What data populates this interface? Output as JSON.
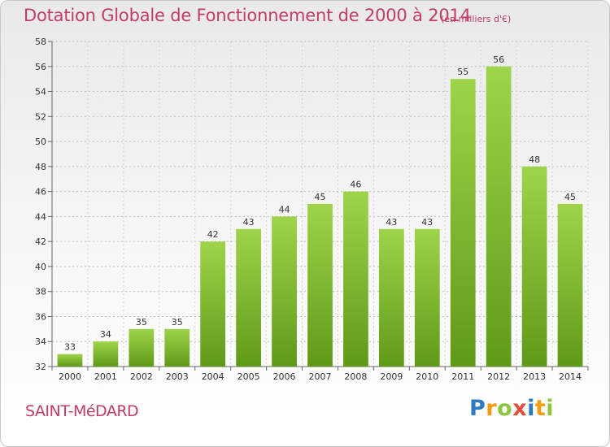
{
  "title": "Dotation Globale de Fonctionnement de 2000 à 2014",
  "subtitle": "(en milliers d'€)",
  "commune": "SAINT-MéDARD",
  "logo": {
    "letters": [
      "P",
      "r",
      "o",
      "x",
      "i",
      "t",
      "i"
    ],
    "colors": [
      "#2e7bbf",
      "#f39c12",
      "#8cc63f",
      "#e74c3c",
      "#2e7bbf",
      "#f39c12",
      "#8cc63f"
    ]
  },
  "chart_data": {
    "type": "bar",
    "categories": [
      "2000",
      "2001",
      "2002",
      "2003",
      "2004",
      "2005",
      "2006",
      "2007",
      "2008",
      "2009",
      "2010",
      "2011",
      "2012",
      "2013",
      "2014"
    ],
    "values": [
      33,
      34,
      35,
      35,
      42,
      43,
      44,
      45,
      46,
      43,
      43,
      55,
      56,
      48,
      45
    ],
    "ylim": [
      32,
      58
    ],
    "yticks": [
      32,
      34,
      36,
      38,
      40,
      42,
      44,
      46,
      48,
      50,
      52,
      54,
      56,
      58
    ],
    "grid": true,
    "bar_color": "#7cba2a"
  }
}
